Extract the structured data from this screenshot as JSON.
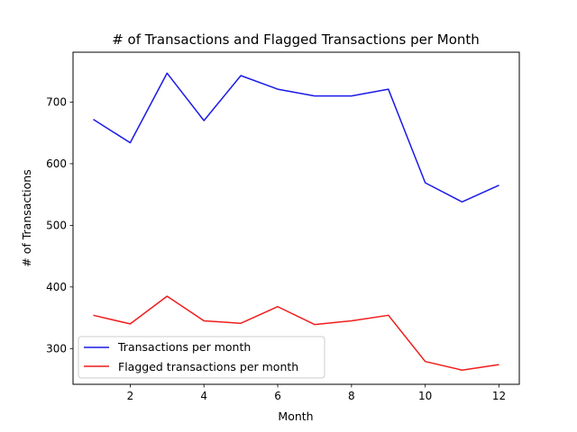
{
  "chart_data": {
    "type": "line",
    "title": "# of Transactions and Flagged Transactions per Month",
    "xlabel": "Month",
    "ylabel": "# of Transactions",
    "x": [
      1,
      2,
      3,
      4,
      5,
      6,
      7,
      8,
      9,
      10,
      11,
      12
    ],
    "xlim": [
      0.45,
      12.55
    ],
    "ylim": [
      242,
      781
    ],
    "xticks": [
      2,
      4,
      6,
      8,
      10,
      12
    ],
    "yticks": [
      300,
      400,
      500,
      600,
      700
    ],
    "grid": false,
    "legend": "lower-left",
    "series": [
      {
        "name": "Transactions per month",
        "color": "#1a1ae6",
        "values": [
          672,
          634,
          747,
          670,
          743,
          721,
          710,
          710,
          721,
          569,
          538,
          565
        ]
      },
      {
        "name": "Flagged transactions per month",
        "color": "#f01c1c",
        "values": [
          354,
          340,
          385,
          345,
          341,
          368,
          339,
          345,
          354,
          279,
          265,
          274
        ]
      }
    ]
  }
}
